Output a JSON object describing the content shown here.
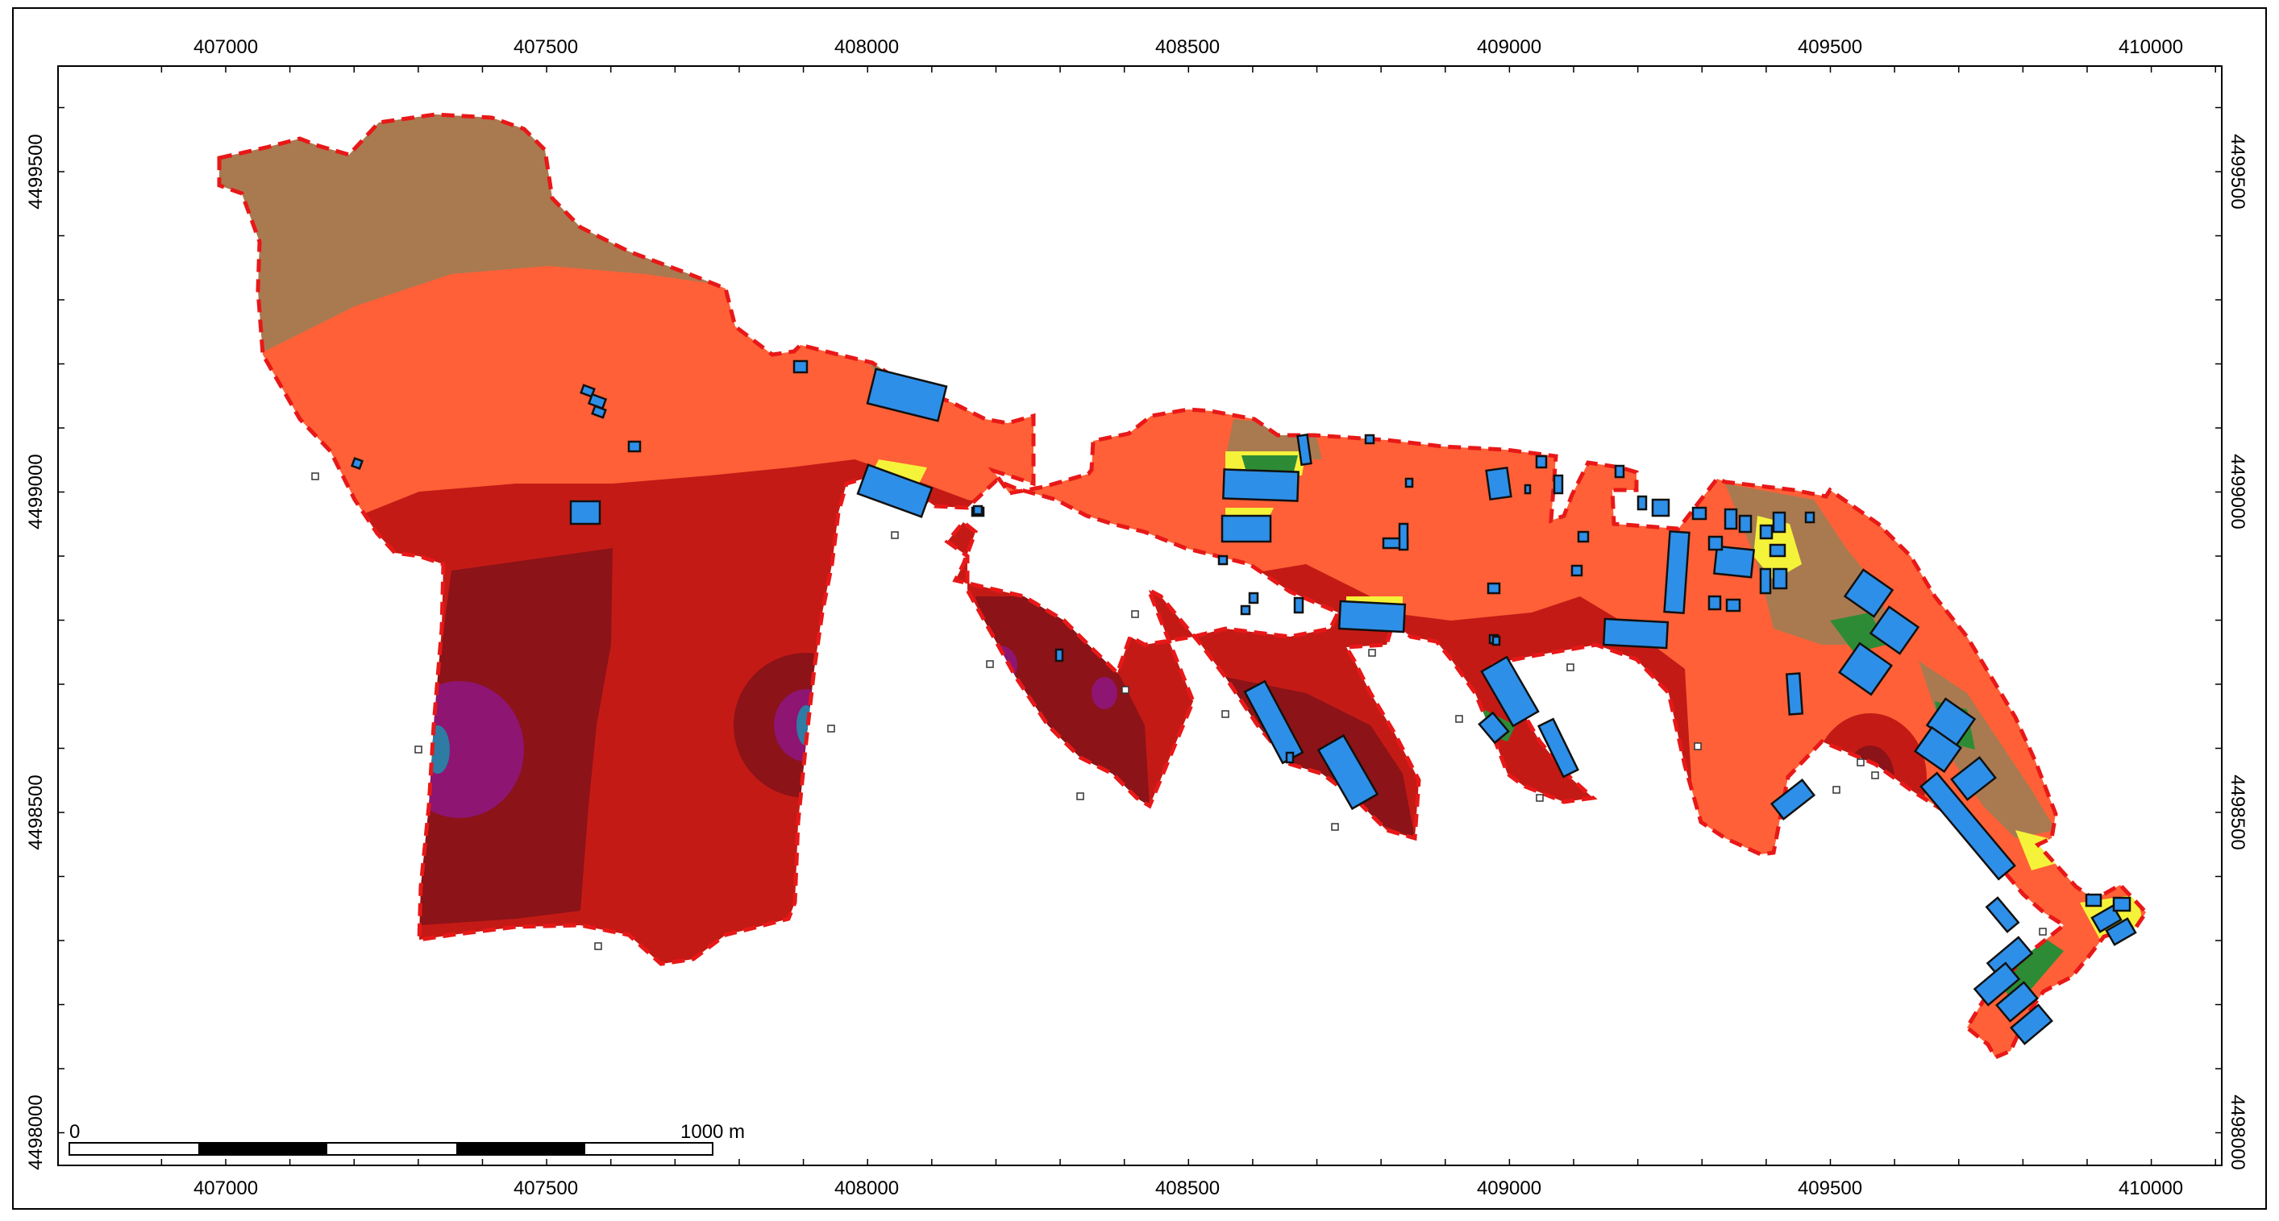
{
  "map": {
    "x_ticks": [
      "407000",
      "407500",
      "408000",
      "408500",
      "409000",
      "409500",
      "410000"
    ],
    "y_ticks": [
      "4499500",
      "4499000",
      "4498500",
      "4498000"
    ],
    "scalebar": {
      "start_label": "0",
      "end_label": "1000 m"
    }
  },
  "colors": {
    "zone_brown": "#A97A50",
    "zone_orange": "#FF6037",
    "zone_red": "#C41A16",
    "zone_darkred": "#8C1317",
    "zone_purple": "#8E1571",
    "zone_teal": "#2E7BA3",
    "zone_yellow": "#F5F23A",
    "zone_green": "#2E8B35",
    "building_fill": "#2E8FE8",
    "boundary": "#E81818",
    "frame": "#000000"
  }
}
